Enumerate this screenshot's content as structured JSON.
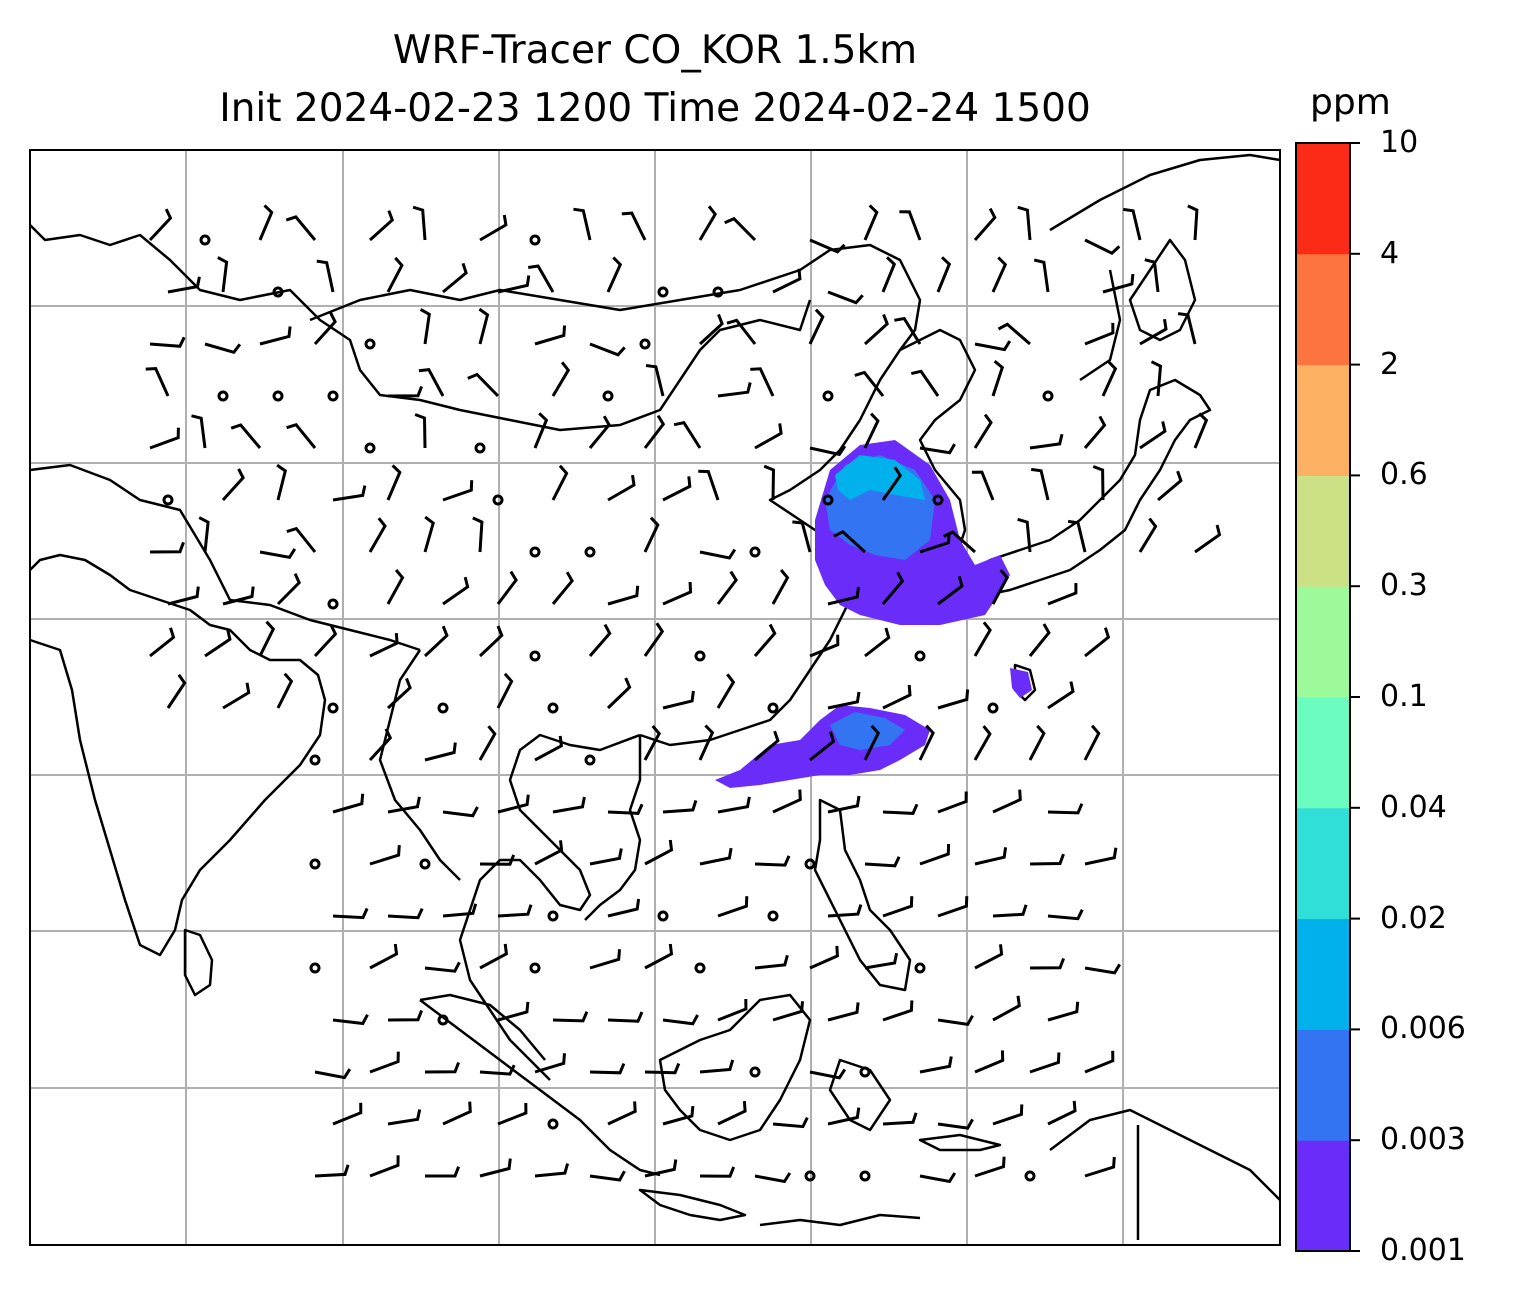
{
  "title": {
    "line1": "WRF-Tracer CO_KOR 1.5km",
    "line2": "Init 2024-02-23 1200 Time 2024-02-24 1500"
  },
  "colorbar": {
    "unit": "ppm",
    "levels": [
      "0.001",
      "0.003",
      "0.006",
      "0.02",
      "0.04",
      "0.1",
      "0.3",
      "0.6",
      "2",
      "4",
      "10"
    ],
    "colors": [
      "#6a2cf8",
      "#3374f3",
      "#00b1ec",
      "#30e0d8",
      "#6bfcc0",
      "#9dfa9a",
      "#cce185",
      "#fcb062",
      "#fe743e",
      "#fb2b17"
    ]
  },
  "map_colors": {
    "plume_low": "#6a2cf8",
    "plume_mid": "#3374f3",
    "plume_high": "#00b1ec",
    "gridline": "#b0b0b0",
    "coastline": "#000000"
  }
}
